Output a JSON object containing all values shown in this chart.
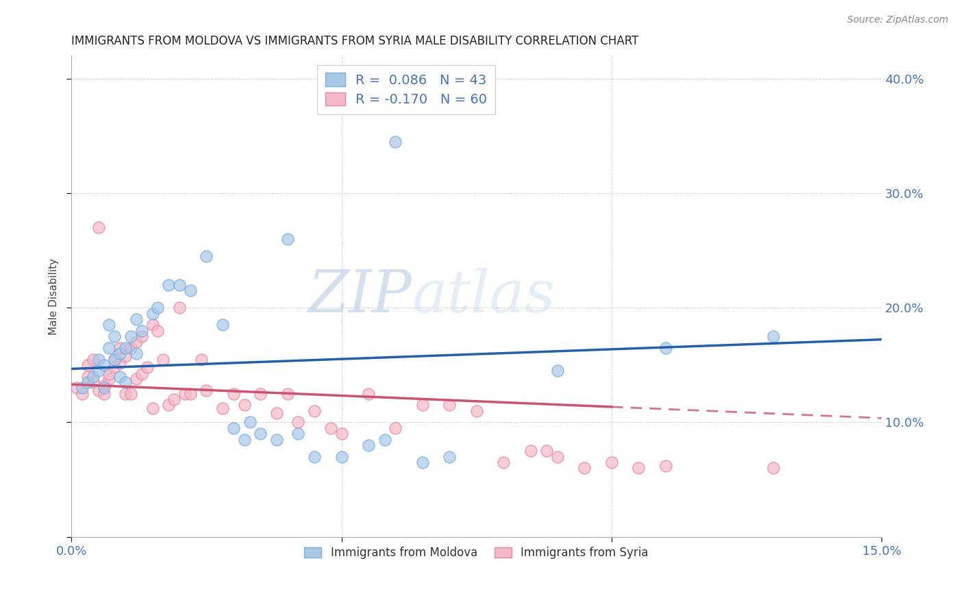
{
  "title": "IMMIGRANTS FROM MOLDOVA VS IMMIGRANTS FROM SYRIA MALE DISABILITY CORRELATION CHART",
  "source": "Source: ZipAtlas.com",
  "ylabel": "Male Disability",
  "xlim": [
    0.0,
    0.15
  ],
  "ylim": [
    0.0,
    0.42
  ],
  "xticks": [
    0.0,
    0.05,
    0.1,
    0.15
  ],
  "xtick_labels": [
    "0.0%",
    "",
    "",
    "15.0%"
  ],
  "yticks": [
    0.0,
    0.1,
    0.2,
    0.3,
    0.4
  ],
  "ytick_labels": [
    "",
    "10.0%",
    "20.0%",
    "30.0%",
    "40.0%"
  ],
  "moldova_color": "#a8c8e8",
  "moldova_edge_color": "#7aade0",
  "syria_color": "#f4b8c8",
  "syria_edge_color": "#e888a0",
  "moldova_R": 0.086,
  "moldova_N": 43,
  "syria_R": -0.17,
  "syria_N": 60,
  "moldova_line_color": "#2060b0",
  "syria_line_color": "#d05070",
  "watermark_color": "#d0dff0",
  "moldova_scatter_x": [
    0.002,
    0.003,
    0.004,
    0.005,
    0.005,
    0.006,
    0.006,
    0.007,
    0.007,
    0.008,
    0.008,
    0.009,
    0.009,
    0.01,
    0.01,
    0.011,
    0.012,
    0.012,
    0.013,
    0.015,
    0.016,
    0.018,
    0.02,
    0.022,
    0.025,
    0.028,
    0.03,
    0.032,
    0.033,
    0.035,
    0.038,
    0.04,
    0.042,
    0.045,
    0.05,
    0.055,
    0.058,
    0.06,
    0.065,
    0.07,
    0.09,
    0.11,
    0.13
  ],
  "moldova_scatter_y": [
    0.13,
    0.135,
    0.14,
    0.145,
    0.155,
    0.13,
    0.15,
    0.165,
    0.185,
    0.155,
    0.175,
    0.14,
    0.16,
    0.135,
    0.165,
    0.175,
    0.16,
    0.19,
    0.18,
    0.195,
    0.2,
    0.22,
    0.22,
    0.215,
    0.245,
    0.185,
    0.095,
    0.085,
    0.1,
    0.09,
    0.085,
    0.26,
    0.09,
    0.07,
    0.07,
    0.08,
    0.085,
    0.345,
    0.065,
    0.07,
    0.145,
    0.165,
    0.175
  ],
  "syria_scatter_x": [
    0.001,
    0.002,
    0.003,
    0.003,
    0.004,
    0.004,
    0.005,
    0.005,
    0.006,
    0.006,
    0.007,
    0.007,
    0.008,
    0.008,
    0.009,
    0.009,
    0.01,
    0.01,
    0.011,
    0.011,
    0.012,
    0.012,
    0.013,
    0.013,
    0.014,
    0.015,
    0.015,
    0.016,
    0.017,
    0.018,
    0.019,
    0.02,
    0.021,
    0.022,
    0.024,
    0.025,
    0.028,
    0.03,
    0.032,
    0.035,
    0.038,
    0.04,
    0.042,
    0.045,
    0.048,
    0.05,
    0.055,
    0.06,
    0.065,
    0.07,
    0.075,
    0.08,
    0.085,
    0.088,
    0.09,
    0.095,
    0.1,
    0.105,
    0.11,
    0.13
  ],
  "syria_scatter_y": [
    0.13,
    0.125,
    0.14,
    0.15,
    0.135,
    0.155,
    0.128,
    0.27,
    0.132,
    0.125,
    0.138,
    0.142,
    0.148,
    0.155,
    0.152,
    0.165,
    0.125,
    0.158,
    0.165,
    0.125,
    0.138,
    0.17,
    0.142,
    0.175,
    0.148,
    0.185,
    0.112,
    0.18,
    0.155,
    0.115,
    0.12,
    0.2,
    0.125,
    0.125,
    0.155,
    0.128,
    0.112,
    0.125,
    0.115,
    0.125,
    0.108,
    0.125,
    0.1,
    0.11,
    0.095,
    0.09,
    0.125,
    0.095,
    0.115,
    0.115,
    0.11,
    0.065,
    0.075,
    0.075,
    0.07,
    0.06,
    0.065,
    0.06,
    0.062,
    0.06
  ]
}
